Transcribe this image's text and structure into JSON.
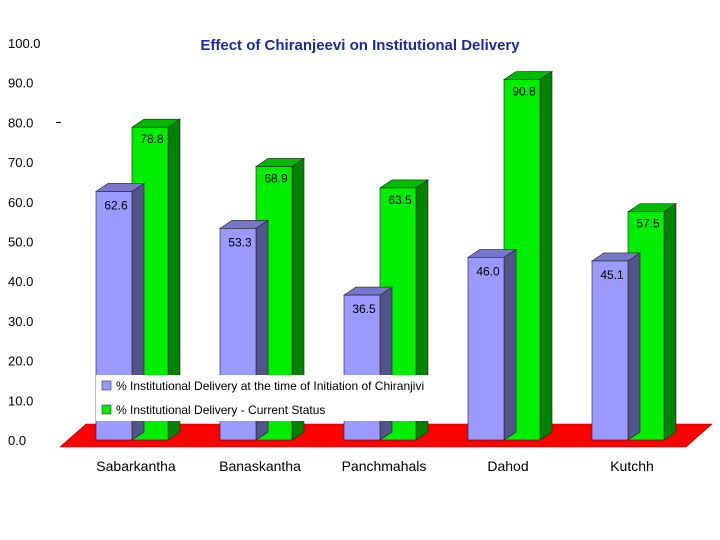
{
  "chart_data": {
    "type": "bar",
    "title": "Effect of Chiranjeevi on Institutional Delivery",
    "categories": [
      "Sabarkantha",
      "Banaskantha",
      "Panchmahals",
      "Dahod",
      "Kutchh"
    ],
    "series": [
      {
        "name": "% Institutional Delivery at the time of Initiation of Chiranjivi",
        "values": [
          62.6,
          53.3,
          36.5,
          46.0,
          45.1
        ],
        "labels": [
          "62.6",
          "53.3",
          "36.5",
          "46.0",
          "45.1"
        ],
        "color": "#9999ff"
      },
      {
        "name": "% Institutional Delivery - Current Status",
        "values": [
          78.8,
          68.9,
          63.5,
          90.8,
          57.5
        ],
        "labels": [
          "78.8",
          "68.9",
          "63.5",
          "90.8",
          "57.5"
        ],
        "color": "#00ee00"
      }
    ],
    "ylim": [
      0,
      100
    ],
    "yticks": [
      "0.0",
      "10.0",
      "20.0",
      "30.0",
      "40.0",
      "50.0",
      "60.0",
      "70.0",
      "80.0",
      "90.0",
      "100.0"
    ],
    "floor_color": "#ff0000",
    "xlabel": "",
    "ylabel": "",
    "legend_position": "lower-left inside plot"
  }
}
